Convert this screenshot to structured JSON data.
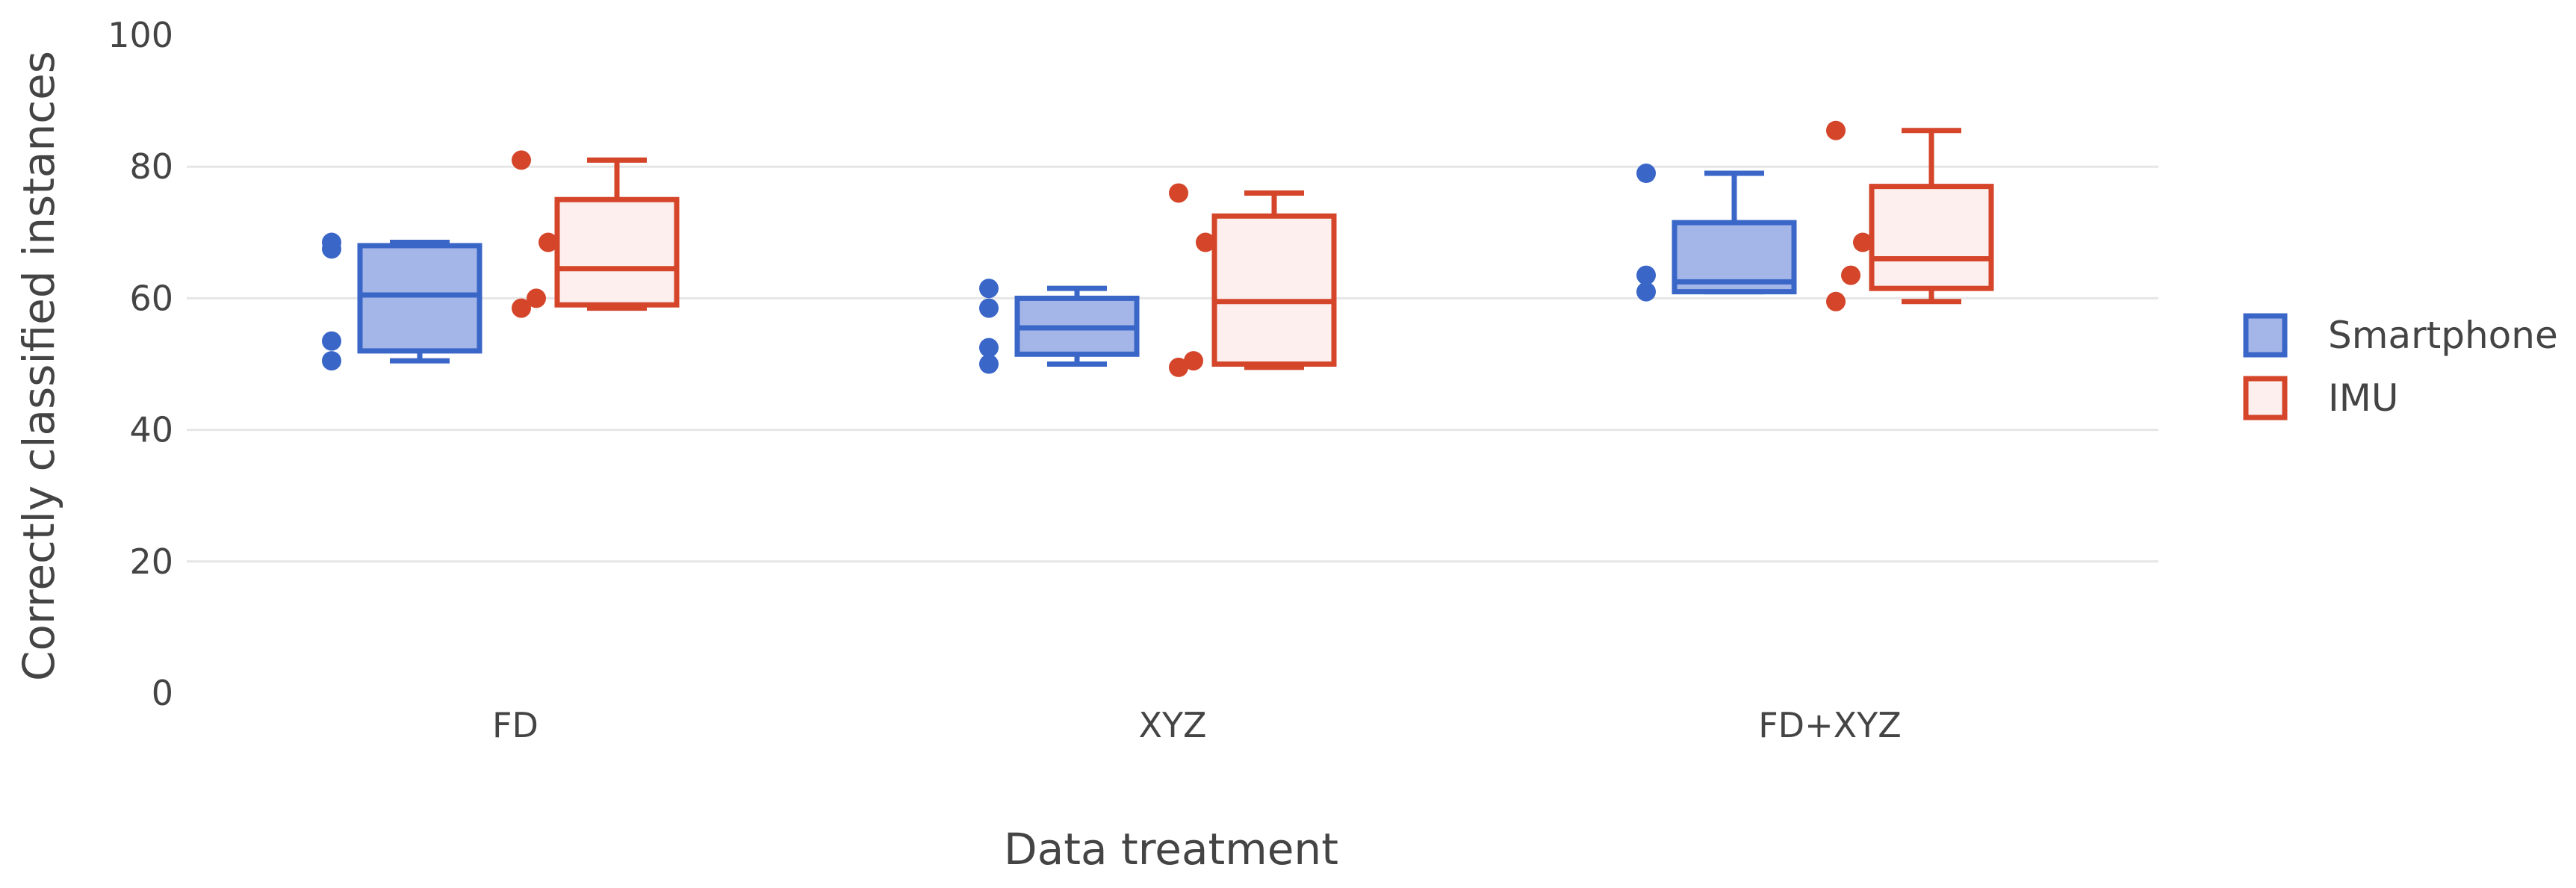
{
  "chart_data": {
    "type": "box",
    "xlabel": "Data treatment",
    "ylabel": "Correctly classified instances",
    "ylim": [
      0,
      100
    ],
    "yticks": [
      0,
      20,
      40,
      60,
      80,
      100
    ],
    "categories": [
      "FD",
      "XYZ",
      "FD+XYZ"
    ],
    "grid": true,
    "legend_position": "right",
    "series": [
      {
        "name": "Smartphone",
        "fill": "#a4b6e8",
        "stroke": "#3a66c8",
        "boxes": [
          {
            "min": 50.5,
            "q1": 52,
            "median": 60.5,
            "q3": 68,
            "max": 68.5,
            "points": [
              50.5,
              53.5,
              67.5,
              68.5
            ]
          },
          {
            "min": 50,
            "q1": 51.5,
            "median": 55.5,
            "q3": 60,
            "max": 61.5,
            "points": [
              50,
              52.5,
              58.5,
              61.5
            ]
          },
          {
            "min": 61,
            "q1": 61,
            "median": 62.5,
            "q3": 71.5,
            "max": 79,
            "points": [
              61,
              63.5,
              79
            ]
          }
        ]
      },
      {
        "name": "IMU",
        "fill": "#fcefed",
        "stroke": "#d4452a",
        "boxes": [
          {
            "min": 58.5,
            "q1": 59,
            "median": 64.5,
            "q3": 75,
            "max": 81,
            "points": [
              58.5,
              60,
              68.5,
              81
            ]
          },
          {
            "min": 49.5,
            "q1": 50,
            "median": 59.5,
            "q3": 72.5,
            "max": 76,
            "points": [
              49.5,
              50.5,
              68.5,
              76
            ]
          },
          {
            "min": 59.5,
            "q1": 61.5,
            "median": 66,
            "q3": 77,
            "max": 85.5,
            "points": [
              59.5,
              63.5,
              68.5,
              85.5
            ]
          }
        ]
      }
    ]
  }
}
